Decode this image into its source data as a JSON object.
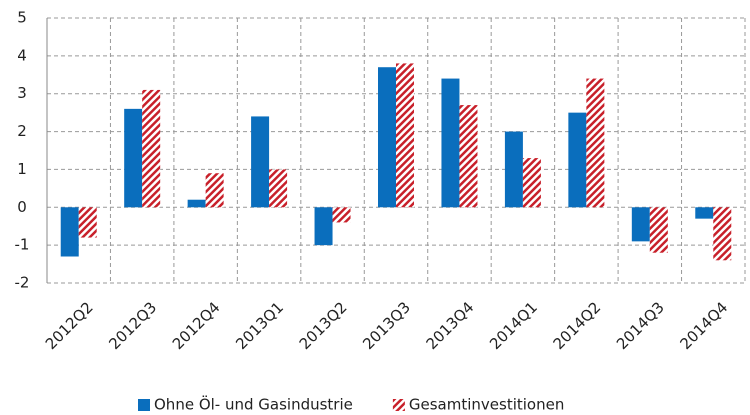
{
  "chart_data": {
    "type": "bar",
    "categories": [
      "2012Q2",
      "2012Q3",
      "2012Q4",
      "2013Q1",
      "2013Q2",
      "2013Q3",
      "2013Q4",
      "2014Q1",
      "2014Q2",
      "2014Q3",
      "2014Q4"
    ],
    "series": [
      {
        "name": "Ohne Öl- und Gasindustrie",
        "color": "#0a6ebd",
        "values": [
          -1.3,
          2.6,
          0.2,
          2.4,
          -1.0,
          3.7,
          3.4,
          2.0,
          2.5,
          -0.9,
          -0.3
        ]
      },
      {
        "name": "Gesamtinvestitionen",
        "color": "#c8202a",
        "pattern": "hatch",
        "values": [
          -0.8,
          3.1,
          0.9,
          1.0,
          -0.4,
          3.8,
          2.7,
          1.3,
          3.4,
          -1.2,
          -1.4
        ]
      }
    ],
    "ylim": [
      -2,
      5
    ],
    "yticks": [
      -2,
      -1,
      0,
      1,
      2,
      3,
      4,
      5
    ],
    "grid": true,
    "legend": "bottom"
  }
}
